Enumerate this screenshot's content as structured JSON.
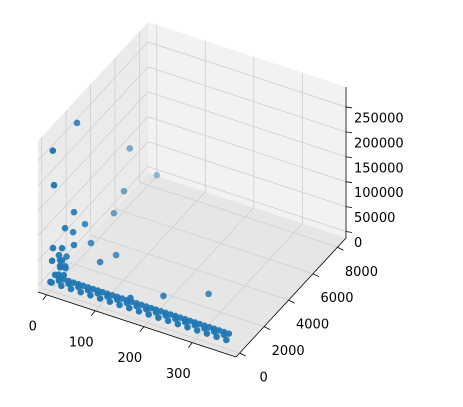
{
  "chart_data": {
    "type": "scatter3d",
    "color": "#1f77b4",
    "grid": true,
    "xlim": [
      -18,
      390
    ],
    "ylim": [
      -300,
      8700
    ],
    "zlim": [
      -13000,
      290000
    ],
    "xticks": [
      0,
      100,
      200,
      300
    ],
    "yticks": [
      0,
      2000,
      4000,
      6000,
      8000
    ],
    "zticks": [
      0,
      50000,
      100000,
      150000,
      200000,
      250000
    ],
    "x": [
      0,
      10,
      20,
      30,
      40,
      50,
      60,
      70,
      80,
      90,
      100,
      110,
      120,
      130,
      140,
      150,
      160,
      170,
      180,
      190,
      200,
      210,
      220,
      230,
      240,
      250,
      260,
      270,
      280,
      290,
      300,
      310,
      320,
      330,
      340,
      350,
      360,
      5,
      15,
      25,
      35,
      45,
      55,
      65,
      75,
      85,
      95,
      105,
      115,
      125,
      135,
      145,
      155,
      165,
      175,
      185,
      195,
      205,
      215,
      225,
      235,
      245,
      255,
      265,
      275,
      285,
      295,
      305,
      315,
      325,
      335,
      345,
      355,
      0,
      2,
      5,
      8,
      3,
      10,
      0,
      6,
      12,
      15,
      1,
      4,
      5,
      10,
      5,
      20,
      30,
      30,
      20,
      20,
      10,
      20,
      30,
      15,
      10,
      0,
      20,
      5,
      60,
      70,
      150,
      200,
      270
    ],
    "y": [
      100,
      300,
      100,
      300,
      100,
      300,
      100,
      300,
      100,
      300,
      100,
      300,
      100,
      300,
      100,
      300,
      100,
      300,
      100,
      300,
      100,
      300,
      100,
      300,
      100,
      300,
      100,
      300,
      100,
      300,
      100,
      300,
      100,
      300,
      100,
      300,
      100,
      500,
      500,
      500,
      500,
      500,
      500,
      500,
      500,
      500,
      500,
      500,
      500,
      500,
      500,
      500,
      500,
      500,
      500,
      500,
      500,
      500,
      500,
      500,
      500,
      500,
      500,
      500,
      500,
      500,
      500,
      500,
      500,
      500,
      500,
      500,
      500,
      0,
      300,
      600,
      900,
      1200,
      400,
      700,
      1000,
      200,
      500,
      100,
      800,
      0,
      1780,
      100,
      5700,
      7520,
      4830,
      4400,
      1137,
      800,
      2035,
      2130,
      1260,
      557,
      214,
      1137,
      590,
      1684,
      2598,
      590,
      1308,
      2222
    ],
    "z": [
      1000,
      3000,
      1000,
      3000,
      1000,
      3000,
      1000,
      3000,
      1000,
      3000,
      1000,
      3000,
      1000,
      3000,
      1000,
      3000,
      1000,
      3000,
      1000,
      3000,
      1000,
      3000,
      1000,
      3000,
      1000,
      3000,
      1000,
      3000,
      1000,
      3000,
      1000,
      3000,
      1000,
      3000,
      1000,
      3000,
      1000,
      1500,
      1500,
      1500,
      1500,
      1500,
      1500,
      1500,
      1500,
      1500,
      1500,
      1500,
      1500,
      1500,
      1500,
      1500,
      1500,
      1500,
      1500,
      1500,
      1500,
      1500,
      1500,
      1500,
      1500,
      1500,
      1500,
      1500,
      1500,
      1500,
      1500,
      1500,
      1500,
      1500,
      1500,
      1500,
      1500,
      5000,
      12000,
      20000,
      15000,
      25000,
      30000,
      40000,
      8000,
      18000,
      10000,
      45000,
      28000,
      270000,
      280000,
      198000,
      128000,
      29200,
      68600,
      32600,
      121200,
      94800,
      73400,
      36000,
      76200,
      61200,
      67200,
      55200,
      34800,
      19400,
      12400,
      5200,
      6200,
      8400
    ]
  }
}
